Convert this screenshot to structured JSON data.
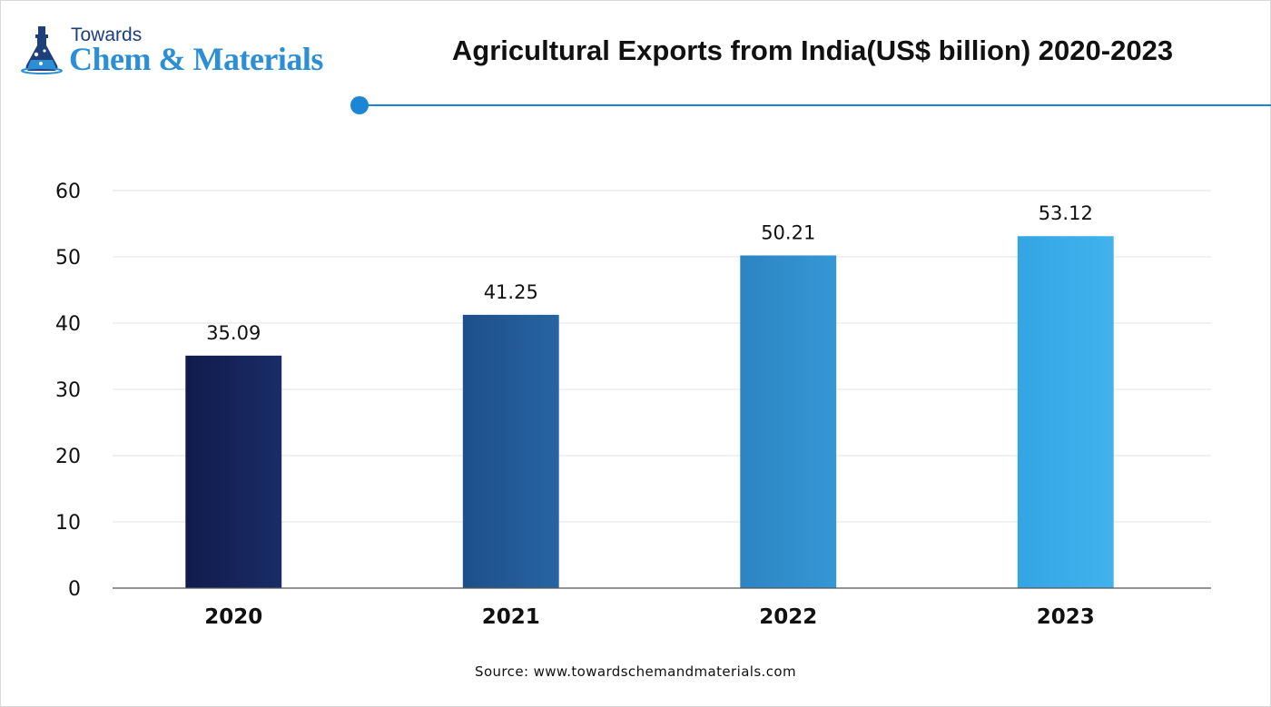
{
  "brand": {
    "top_text": "Towards",
    "main_text": "Chem & Materials",
    "color_dark": "#1f3f7a",
    "color_light": "#2c8fd6",
    "icon": "flask-icon"
  },
  "accent_color": "#1a86d4",
  "chart_data": {
    "type": "bar",
    "title": "Agricultural Exports from India(US$ billion) 2020-2023",
    "categories": [
      "2020",
      "2021",
      "2022",
      "2023"
    ],
    "values": [
      35.09,
      41.25,
      50.21,
      53.12
    ],
    "data_labels": [
      "35.09",
      "41.25",
      "50.21",
      "53.12"
    ],
    "bar_colors": [
      [
        "#111a4c",
        "#1a2d66"
      ],
      [
        "#1d4f8a",
        "#2764a3"
      ],
      [
        "#2d84c2",
        "#3597d6"
      ],
      [
        "#34a5e3",
        "#40b3ee"
      ]
    ],
    "yticks": [
      0,
      10,
      20,
      30,
      40,
      50,
      60
    ],
    "ylim": [
      0,
      60
    ],
    "grid": true,
    "xlabel": "",
    "ylabel": "",
    "legend": "none"
  },
  "source": "Source: www.towardschemandmaterials.com"
}
